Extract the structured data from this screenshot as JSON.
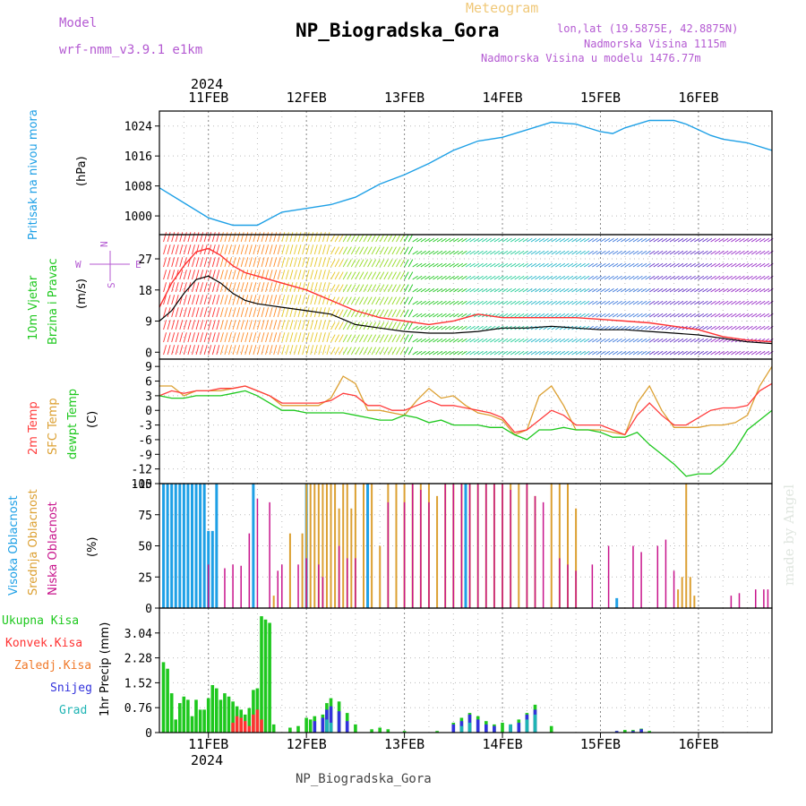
{
  "header": {
    "model_label": "Model",
    "model_name": "wrf-nmm_v3.9.1  e1km",
    "meteogram": "Meteogram",
    "station": "NP_Biogradska_Gora",
    "lonlat": "lon,lat (19.5875E, 42.8875N)",
    "alt1": "Nadmorska Visina 1115m",
    "alt2": "Nadmorska Visina u modelu 1476.77m",
    "footer_station": "NP_Biogradska_Gora",
    "watermark": "made by Angel"
  },
  "colors": {
    "pressure": "#1ea0e6",
    "wind_speed": "#000000",
    "wind_gust": "#ff3232",
    "t2m": "#ff3c3c",
    "sfc": "#dca032",
    "dew": "#1ec81e",
    "high_cloud": "#1ea0e6",
    "mid_cloud": "#dca032",
    "low_cloud": "#c8148c",
    "total_precip": "#1ec81e",
    "conv_precip": "#ff3232",
    "snow": "#3232dc",
    "graupel": "#1eb4b4",
    "label_purple": "#b45ad2"
  },
  "axes": {
    "year": "2024",
    "dates": [
      "11FEB",
      "12FEB",
      "13FEB",
      "14FEB",
      "15FEB",
      "16FEB"
    ],
    "x_start_hours": -12,
    "x_end_hours": 138,
    "x_major_every_hours": 24,
    "x_minor_every_hours": 6
  },
  "chart_data": [
    {
      "type": "line",
      "id": "pressure",
      "ylabel_lines": [
        "Pritisak na nivou mora",
        "(hPa)"
      ],
      "yticks": [
        "1000",
        "1008",
        "1016",
        "1024"
      ],
      "ylim": [
        995,
        1028
      ],
      "x_hours": [
        -12,
        -6,
        0,
        3,
        6,
        9,
        12,
        18,
        24,
        30,
        36,
        42,
        48,
        54,
        60,
        66,
        72,
        78,
        84,
        90,
        96,
        99,
        102,
        108,
        114,
        117,
        120,
        123,
        126,
        132,
        138
      ],
      "series": [
        {
          "values": [
            1007.5,
            1003.5,
            999.5,
            998.5,
            997.5,
            997.5,
            997.5,
            1001,
            1002,
            1003,
            1005,
            1008.5,
            1011,
            1014,
            1017.5,
            1020,
            1021,
            1023,
            1025,
            1024.5,
            1022.5,
            1022,
            1023.5,
            1025.5,
            1025.5,
            1024.5,
            1023,
            1021.5,
            1020.5,
            1019.5,
            1017.5
          ]
        }
      ]
    },
    {
      "type": "line",
      "id": "wind",
      "ylabel_lines": [
        "10m Vjetar",
        "Brzina i Pravac",
        "(m/s)"
      ],
      "compass": [
        "N",
        "E",
        "S",
        "W"
      ],
      "yticks": [
        "0",
        "9",
        "18",
        "27"
      ],
      "ylim": [
        -2,
        34
      ],
      "x_hours": [
        -12,
        -9,
        -6,
        -3,
        0,
        3,
        6,
        9,
        12,
        18,
        24,
        30,
        36,
        42,
        48,
        54,
        60,
        66,
        72,
        78,
        84,
        90,
        96,
        102,
        108,
        114,
        120,
        126,
        132,
        138
      ],
      "series": [
        {
          "id": "speed",
          "values": [
            9,
            12,
            17,
            21,
            22,
            20,
            17,
            15,
            14,
            13,
            12,
            11,
            8,
            7,
            6,
            5.5,
            5.5,
            6,
            7,
            7,
            7.5,
            7,
            6.5,
            6.5,
            6,
            5.5,
            5,
            4,
            3,
            2.5
          ]
        },
        {
          "id": "gust",
          "values": [
            13,
            20,
            25,
            29,
            30,
            28,
            25,
            23,
            22,
            20,
            18,
            15,
            12,
            10,
            9,
            8,
            9,
            11,
            10,
            10,
            10,
            10,
            9.5,
            9,
            8.5,
            7.5,
            6.5,
            4.5,
            3.5,
            3
          ]
        }
      ]
    },
    {
      "type": "line",
      "id": "temperature",
      "ylabel_lines": [
        "2m Temp",
        "SFC Temp",
        "dewpt Temp",
        "(C)"
      ],
      "yticks": [
        "-15",
        "-12",
        "-9",
        "-6",
        "-3",
        "0",
        "3",
        "6",
        "9"
      ],
      "ylim": [
        -15,
        10.5
      ],
      "x_hours": [
        -12,
        -9,
        -6,
        -3,
        0,
        3,
        6,
        9,
        12,
        15,
        18,
        21,
        24,
        27,
        30,
        33,
        36,
        39,
        42,
        45,
        48,
        51,
        54,
        57,
        60,
        63,
        66,
        69,
        72,
        75,
        78,
        81,
        84,
        87,
        90,
        93,
        96,
        99,
        102,
        105,
        108,
        111,
        114,
        117,
        120,
        123,
        126,
        129,
        132,
        135,
        138
      ],
      "series": [
        {
          "id": "t2m",
          "values": [
            3,
            4,
            3.5,
            4,
            4,
            4.5,
            4.5,
            5,
            4,
            3,
            1.5,
            1.5,
            1.5,
            1.5,
            2,
            3.5,
            3,
            1,
            1,
            0,
            0,
            1,
            2,
            1,
            1,
            0.5,
            0,
            -0.5,
            -1.5,
            -4.5,
            -4,
            -2,
            0,
            -1,
            -3,
            -3,
            -3,
            -4,
            -5,
            -1,
            1.5,
            -1,
            -3,
            -3,
            -1.5,
            0,
            0.5,
            0.5,
            1,
            4,
            5.5
          ]
        },
        {
          "id": "sfc",
          "values": [
            5,
            5,
            3,
            4,
            4,
            4,
            4.5,
            5,
            4,
            3,
            1,
            1,
            1,
            1,
            2.5,
            7,
            5.5,
            0,
            0,
            -0.5,
            -1,
            2,
            4.5,
            2.5,
            3,
            1,
            -0.5,
            -1,
            -2,
            -5,
            -4,
            3,
            5,
            1,
            -4,
            -4,
            -4,
            -4.5,
            -5,
            1.5,
            5,
            0,
            -3.5,
            -3.5,
            -3.5,
            -3,
            -3,
            -2.5,
            -1,
            5,
            9
          ]
        },
        {
          "id": "dew",
          "values": [
            3,
            2.5,
            2.5,
            3,
            3,
            3,
            3.5,
            4,
            3,
            1.5,
            0,
            0,
            -0.5,
            -0.5,
            -0.5,
            -0.5,
            -1,
            -1.5,
            -2,
            -2,
            -1,
            -1.5,
            -2.5,
            -2,
            -3,
            -3,
            -3,
            -3.5,
            -3.5,
            -5,
            -6,
            -4,
            -4,
            -3.5,
            -4,
            -4,
            -4.5,
            -5.5,
            -5.5,
            -4.5,
            -7,
            -9,
            -11,
            -13.5,
            -13,
            -13,
            -11,
            -8,
            -4,
            -2,
            0
          ]
        }
      ]
    },
    {
      "type": "bar",
      "id": "clouds",
      "ylabel_lines": [
        "Visoka Oblacnost",
        "Srednja Oblacnost",
        "Niska  Oblacnost",
        "(%)"
      ],
      "yticks": [
        "0",
        "25",
        "50",
        "75",
        "100"
      ],
      "ylim": [
        0,
        100
      ],
      "series": [
        {
          "id": "high",
          "x_hours": [
            -11,
            -10,
            -9,
            -8,
            -7,
            -6,
            -5,
            -4,
            -3,
            -2,
            -1,
            0,
            1,
            2,
            11,
            24,
            39,
            63,
            100
          ],
          "values": [
            100,
            100,
            100,
            100,
            100,
            100,
            100,
            100,
            100,
            100,
            100,
            62,
            62,
            100,
            100,
            100,
            100,
            100,
            8
          ]
        },
        {
          "id": "mid",
          "x_hours": [
            16,
            20,
            23,
            24,
            25,
            26,
            27,
            28,
            29,
            30,
            31,
            32,
            33,
            34,
            35,
            36,
            38,
            40,
            42,
            44,
            46,
            48,
            50,
            52,
            54,
            56,
            58,
            60,
            62,
            64,
            66,
            68,
            70,
            72,
            74,
            76,
            78,
            80,
            84,
            86,
            88,
            90,
            115,
            116,
            117,
            118,
            119
          ],
          "values": [
            10,
            60,
            60,
            100,
            100,
            100,
            100,
            100,
            100,
            100,
            100,
            80,
            100,
            100,
            80,
            100,
            100,
            100,
            50,
            100,
            100,
            100,
            100,
            100,
            100,
            90,
            100,
            100,
            100,
            100,
            100,
            100,
            100,
            100,
            100,
            100,
            100,
            90,
            100,
            100,
            100,
            80,
            15,
            25,
            100,
            25,
            10
          ]
        },
        {
          "id": "low",
          "x_hours": [
            0,
            4,
            6,
            8,
            10,
            12,
            15,
            17,
            18,
            22,
            24,
            27,
            28,
            32,
            34,
            36,
            44,
            48,
            50,
            52,
            54,
            58,
            60,
            62,
            64,
            66,
            68,
            70,
            72,
            74,
            78,
            80,
            82,
            86,
            88,
            90,
            94,
            98,
            104,
            106,
            110,
            112,
            114,
            128,
            130,
            134,
            136,
            137
          ],
          "values": [
            35,
            32,
            35,
            34,
            60,
            88,
            85,
            30,
            35,
            35,
            40,
            35,
            25,
            50,
            40,
            40,
            85,
            85,
            100,
            95,
            85,
            100,
            100,
            100,
            100,
            100,
            100,
            100,
            100,
            95,
            100,
            90,
            85,
            40,
            35,
            30,
            35,
            50,
            50,
            45,
            50,
            55,
            30,
            10,
            12,
            15,
            15,
            15
          ]
        }
      ]
    },
    {
      "type": "bar",
      "id": "precip",
      "ylabel_lines": [
        "1hr Precip (mm)"
      ],
      "legend": [
        "Ukupna  Kisa",
        "Konvek.Kisa",
        "Zaledj.Kisa",
        "Snijeg",
        "Grad"
      ],
      "yticks": [
        "0",
        "0.76",
        "1.52",
        "2.28",
        "3.04"
      ],
      "ylim": [
        0,
        3.8
      ],
      "series": [
        {
          "id": "total",
          "x_hours": [
            -11,
            -10,
            -9,
            -8,
            -7,
            -6,
            -5,
            -4,
            -3,
            -2,
            -1,
            0,
            1,
            2,
            3,
            4,
            5,
            6,
            7,
            8,
            9,
            10,
            11,
            12,
            13,
            14,
            15,
            16,
            20,
            22,
            24,
            25,
            26,
            28,
            29,
            30,
            32,
            34,
            36,
            40,
            42,
            44,
            48,
            56,
            60,
            62,
            64,
            66,
            68,
            70,
            72,
            74,
            76,
            78,
            80,
            84,
            100,
            102,
            104,
            106,
            108
          ],
          "values": [
            2.15,
            1.95,
            1.2,
            0.4,
            0.9,
            1.1,
            1.0,
            0.5,
            1.0,
            0.7,
            0.7,
            1.05,
            1.45,
            1.35,
            1.0,
            1.2,
            1.1,
            0.95,
            0.8,
            0.7,
            0.55,
            0.75,
            1.3,
            1.35,
            3.55,
            3.45,
            3.35,
            0.25,
            0.15,
            0.2,
            0.45,
            0.4,
            0.5,
            0.55,
            0.9,
            1.05,
            0.95,
            0.6,
            0.25,
            0.1,
            0.15,
            0.1,
            0.05,
            0.05,
            0.3,
            0.45,
            0.6,
            0.5,
            0.35,
            0.25,
            0.3,
            0.25,
            0.4,
            0.6,
            0.85,
            0.2,
            0.05,
            0.08,
            0.08,
            0.12,
            0.05
          ]
        },
        {
          "id": "conv",
          "x_hours": [
            6,
            7,
            8,
            9,
            10,
            11,
            12,
            13
          ],
          "values": [
            0.3,
            0.5,
            0.45,
            0.35,
            0.2,
            0.55,
            0.7,
            0.4
          ]
        },
        {
          "id": "snow",
          "x_hours": [
            26,
            28,
            29,
            30,
            32,
            34,
            60,
            62,
            64,
            66,
            68,
            70,
            74,
            76,
            78,
            80,
            100,
            104,
            106
          ],
          "values": [
            0.35,
            0.45,
            0.7,
            0.8,
            0.65,
            0.35,
            0.25,
            0.35,
            0.55,
            0.4,
            0.25,
            0.2,
            0.2,
            0.3,
            0.55,
            0.7,
            0.05,
            0.05,
            0.1
          ]
        },
        {
          "id": "graupel",
          "x_hours": [
            29,
            30,
            62,
            64,
            74,
            78,
            80
          ],
          "values": [
            0.4,
            0.3,
            0.2,
            0.3,
            0.25,
            0.4,
            0.55
          ]
        }
      ]
    }
  ]
}
